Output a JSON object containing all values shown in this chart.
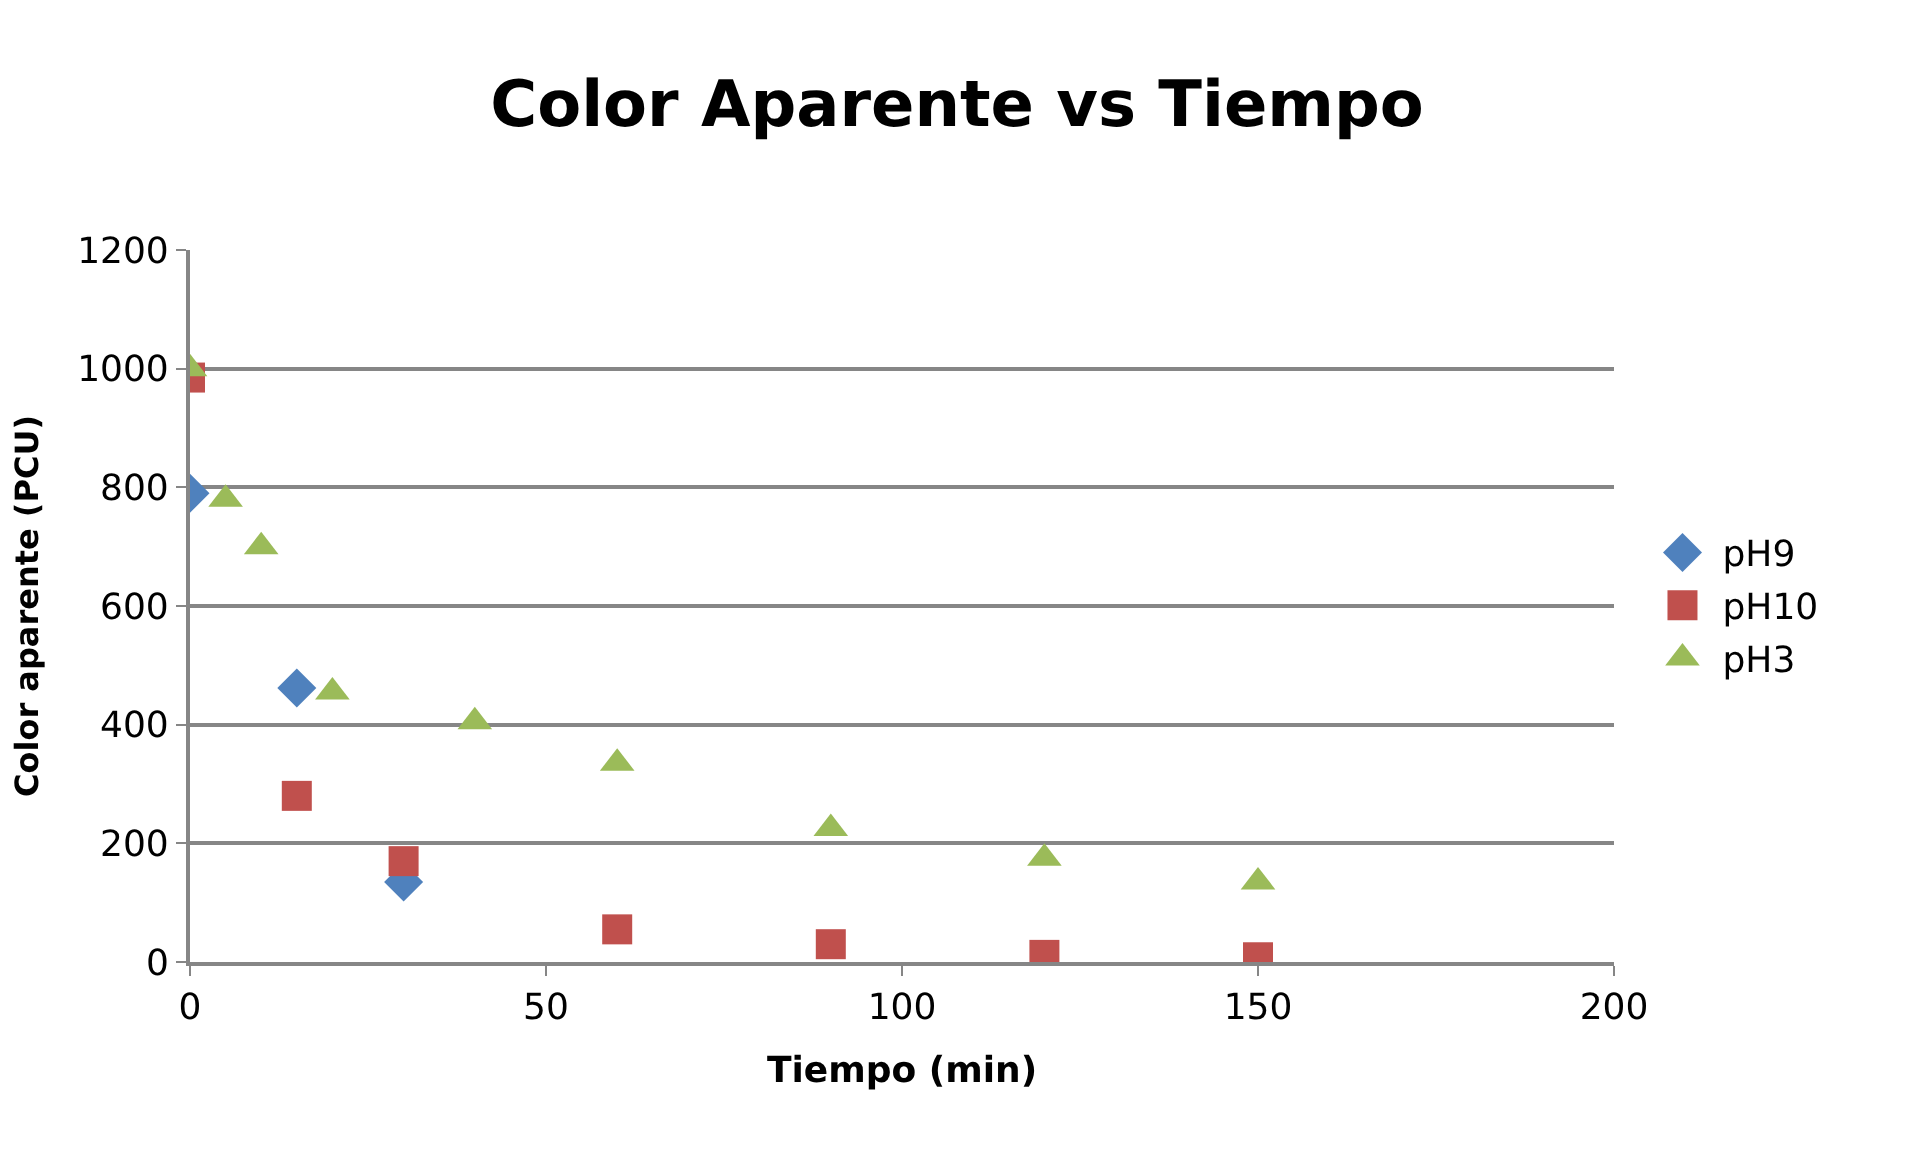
{
  "chart_data": {
    "type": "scatter",
    "title": "Color Aparente vs Tiempo",
    "xlabel": "Tiempo (min)",
    "ylabel": "Color aparente (PCU)",
    "series": [
      {
        "name": "pH9",
        "color": "#4f81bd",
        "marker": "diamond",
        "x": [
          0,
          15,
          30
        ],
        "values": [
          790,
          462,
          135
        ]
      },
      {
        "name": "pH10",
        "color": "#c0504d",
        "marker": "square",
        "x": [
          0,
          15,
          30,
          60,
          90,
          120,
          150
        ],
        "values": [
          985,
          280,
          170,
          55,
          30,
          12,
          8
        ]
      },
      {
        "name": "pH3",
        "color": "#9bbb59",
        "marker": "triangle",
        "x": [
          0,
          5,
          10,
          20,
          40,
          60,
          90,
          120,
          150
        ],
        "values": [
          1000,
          780,
          700,
          455,
          405,
          335,
          225,
          175,
          135
        ]
      }
    ],
    "xlim": [
      0,
      200
    ],
    "xticks": [
      0,
      50,
      100,
      150,
      200
    ],
    "ylim": [
      0,
      1200
    ],
    "yticks": [
      0,
      200,
      400,
      600,
      800,
      1000,
      1200
    ],
    "grid": "y",
    "legend": "right"
  }
}
